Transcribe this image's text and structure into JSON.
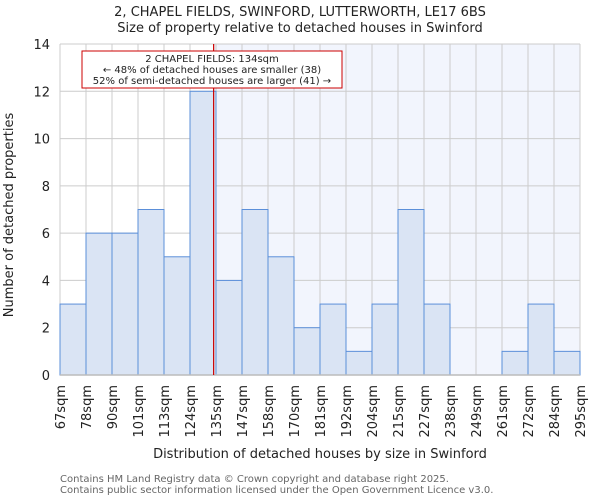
{
  "chart_data": {
    "type": "bar",
    "title": "2, CHAPEL FIELDS, SWINFORD, LUTTERWORTH, LE17 6BS",
    "subtitle": "Size of property relative to detached houses in Swinford",
    "xlabel": "Distribution of detached houses by size in Swinford",
    "ylabel": "Number of detached properties",
    "x_tick_labels": [
      "67sqm",
      "78sqm",
      "90sqm",
      "101sqm",
      "113sqm",
      "124sqm",
      "135sqm",
      "147sqm",
      "158sqm",
      "170sqm",
      "181sqm",
      "192sqm",
      "204sqm",
      "215sqm",
      "227sqm",
      "238sqm",
      "249sqm",
      "261sqm",
      "272sqm",
      "284sqm",
      "295sqm"
    ],
    "bin_edges": [
      67,
      78,
      90,
      101,
      113,
      124,
      135,
      147,
      158,
      170,
      181,
      192,
      204,
      215,
      227,
      238,
      249,
      261,
      272,
      284,
      295
    ],
    "values": [
      3,
      6,
      6,
      7,
      5,
      12,
      4,
      7,
      5,
      2,
      3,
      1,
      3,
      7,
      3,
      0,
      0,
      1,
      3,
      1
    ],
    "ylim": [
      0,
      14
    ],
    "y_ticks": [
      0,
      2,
      4,
      6,
      8,
      10,
      12,
      14
    ],
    "grid": true,
    "marker": {
      "value": 134,
      "color": "#cc0000"
    },
    "annotation": {
      "line1": "2 CHAPEL FIELDS: 134sqm",
      "line2": "← 48% of detached houses are smaller (38)",
      "line3": "52% of semi-detached houses are larger (41) →"
    },
    "colors": {
      "bar_fill": "#dae4f4",
      "bar_stroke": "#5b8fd9",
      "highlight_bg": "#f2f5fd",
      "grid": "#cccccc"
    }
  },
  "footer": {
    "line1": "Contains HM Land Registry data © Crown copyright and database right 2025.",
    "line2": "Contains public sector information licensed under the Open Government Licence v3.0."
  }
}
